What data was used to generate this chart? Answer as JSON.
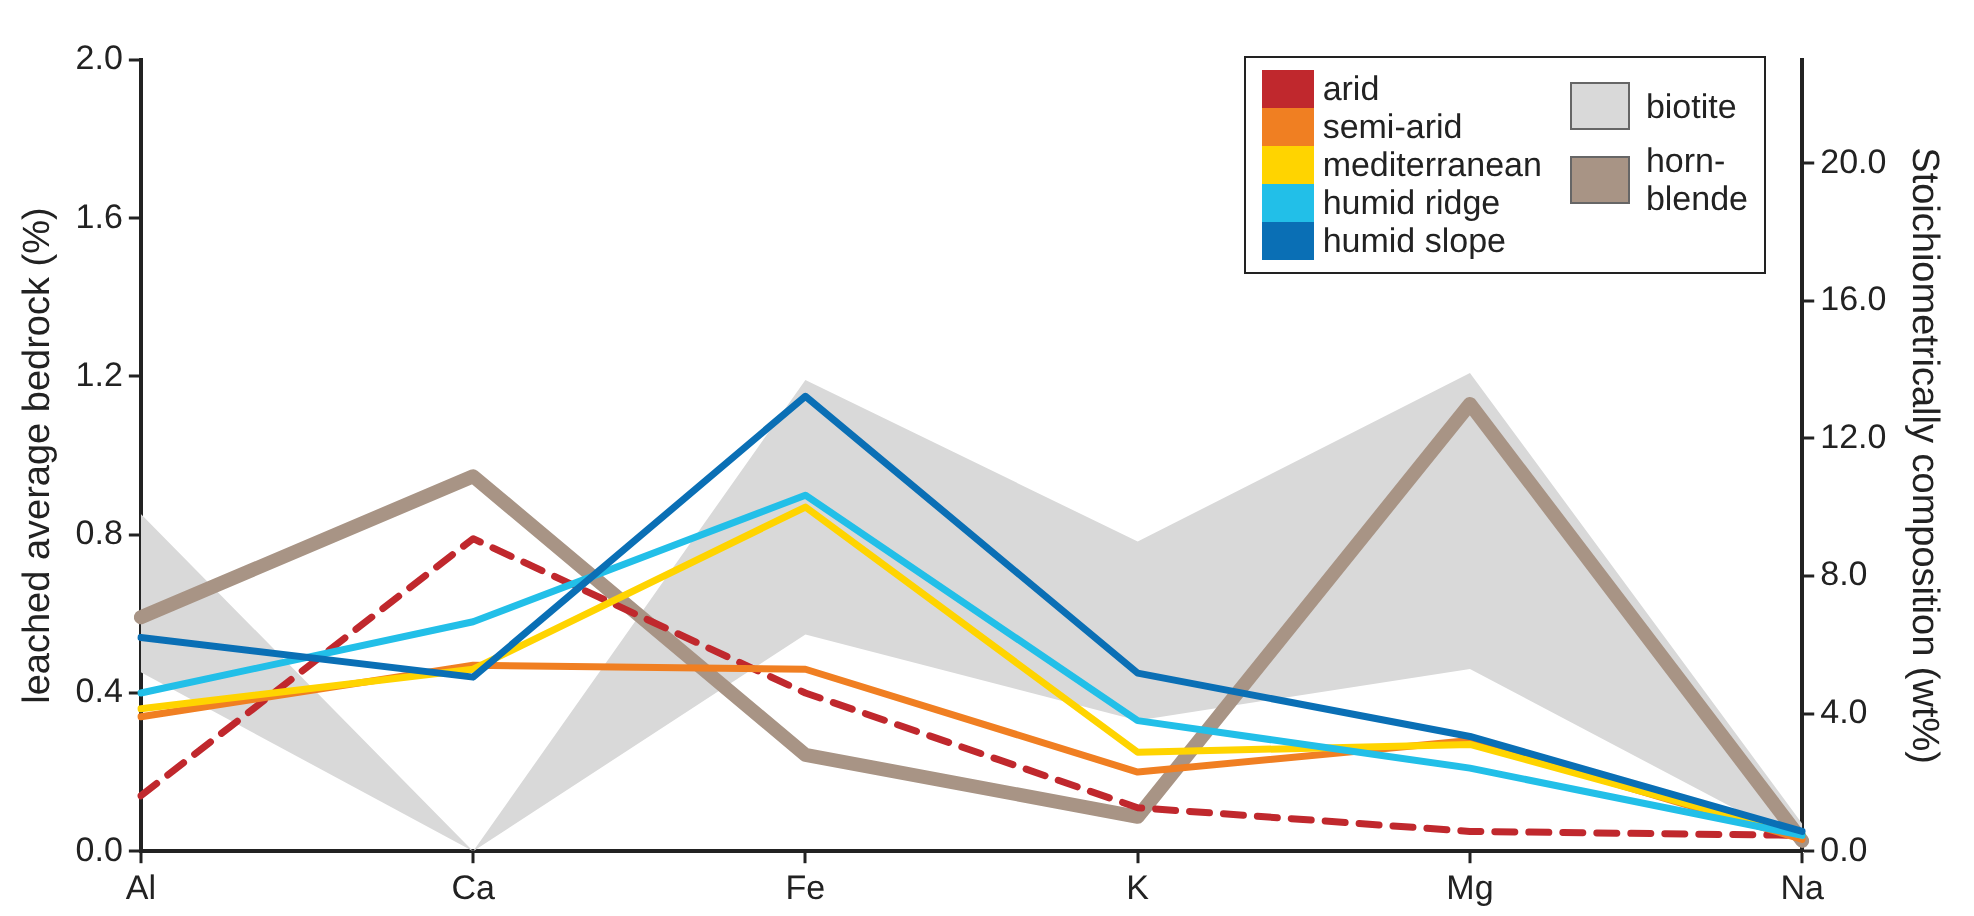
{
  "chart_data": {
    "type": "line",
    "categories": [
      "Al",
      "Ca",
      "Fe",
      "K",
      "Mg",
      "Na"
    ],
    "ylabel": "leached average bedrock (%)",
    "y2label": "Stoichiometrically composition (wt%)",
    "ylim": [
      0,
      2.0
    ],
    "yticks": [
      {
        "value": 0,
        "label": "0.0"
      },
      {
        "value": 0.4,
        "label": "0.4"
      },
      {
        "value": 0.8,
        "label": "0.8"
      },
      {
        "value": 1.2,
        "label": "1.2"
      },
      {
        "value": 1.6,
        "label": "1.6"
      },
      {
        "value": 2.0,
        "label": "2.0"
      }
    ],
    "y2lim": [
      0,
      23
    ],
    "y2ticks": [
      {
        "value": 0,
        "label": "0.0"
      },
      {
        "value": 4,
        "label": "4.0"
      },
      {
        "value": 8,
        "label": "8.0"
      },
      {
        "value": 12,
        "label": "12.0"
      },
      {
        "value": 16,
        "label": "16.0"
      },
      {
        "value": 20,
        "label": "20.0"
      }
    ],
    "grid": false,
    "legend": "top right",
    "marker": "none",
    "series": [
      {
        "name": "biotite",
        "type": "area",
        "axis": "y2",
        "color": "#d9d9d9",
        "values": [
          null,
          null,
          null,
          null,
          null,
          null
        ],
        "lower": [
          5.2,
          0,
          6.3,
          3.8,
          5.3,
          0.2
        ],
        "upper": [
          9.8,
          0,
          13.7,
          9.0,
          13.9,
          0.8
        ]
      },
      {
        "name": "horn-\nblende",
        "axis": "y2",
        "color": "#a89485",
        "values": [
          6.8,
          10.9,
          2.8,
          1.0,
          13.0,
          0.3
        ]
      },
      {
        "name": "arid",
        "color": "#c0282d",
        "line_style": "dashed",
        "values": [
          0.14,
          0.79,
          0.4,
          0.11,
          0.05,
          0.04
        ]
      },
      {
        "name": "semi-arid",
        "color": "#f07f22",
        "values": [
          0.34,
          0.47,
          0.46,
          0.2,
          0.28,
          0.03
        ]
      },
      {
        "name": "mediterranean",
        "color": "#ffd400",
        "values": [
          0.36,
          0.46,
          0.87,
          0.25,
          0.27,
          0.04
        ]
      },
      {
        "name": "humid ridge",
        "color": "#22bfe8",
        "values": [
          0.4,
          0.58,
          0.9,
          0.33,
          0.21,
          0.04
        ]
      },
      {
        "name": "humid slope",
        "color": "#0a6fb5",
        "values": [
          0.54,
          0.44,
          1.15,
          0.45,
          0.29,
          0.05
        ]
      }
    ]
  }
}
